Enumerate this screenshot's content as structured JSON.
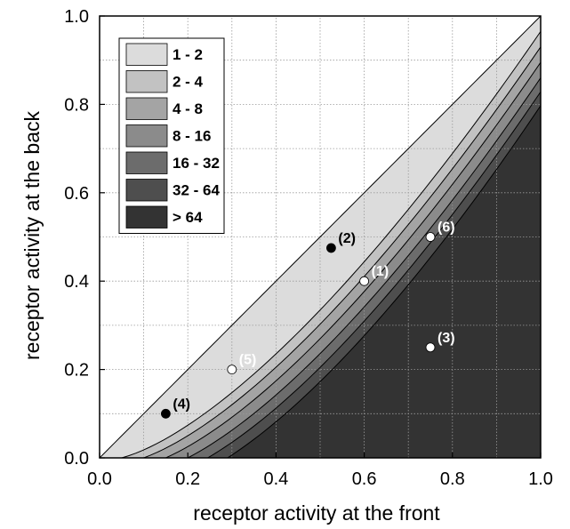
{
  "chart_data": {
    "type": "contour",
    "xlabel": "receptor activity at the front",
    "ylabel": "receptor activity at the back",
    "xlim": [
      0,
      1
    ],
    "ylim": [
      0,
      1
    ],
    "xticks": [
      "0.0",
      "0.2",
      "0.4",
      "0.6",
      "0.8",
      "1.0"
    ],
    "yticks": [
      "0.0",
      "0.2",
      "0.4",
      "0.6",
      "0.8",
      "1.0"
    ],
    "grid": true,
    "legend_position": "top-left",
    "bands": [
      {
        "label": "1 - 2",
        "color": "#dcdcdc",
        "xo": 0.0
      },
      {
        "label": "2 - 4",
        "color": "#c2c2c2",
        "xo": 0.05
      },
      {
        "label": "4 - 8",
        "color": "#a4a4a4",
        "xo": 0.1
      },
      {
        "label": "8 - 16",
        "color": "#8b8b8b",
        "xo": 0.15
      },
      {
        "label": "16 - 32",
        "color": "#6c6c6c",
        "xo": 0.2
      },
      {
        "label": "32 - 64",
        "color": "#4e4e4e",
        "xo": 0.245
      },
      {
        "label": "> 64",
        "color": "#333333",
        "xo": 0.29
      }
    ],
    "points": [
      {
        "label": "(1)",
        "x": 0.6,
        "y": 0.4,
        "fill": "white",
        "text_color": "white"
      },
      {
        "label": "(2)",
        "x": 0.525,
        "y": 0.475,
        "fill": "black",
        "text_color": "black"
      },
      {
        "label": "(3)",
        "x": 0.75,
        "y": 0.25,
        "fill": "white",
        "text_color": "white"
      },
      {
        "label": "(4)",
        "x": 0.15,
        "y": 0.1,
        "fill": "black",
        "text_color": "black"
      },
      {
        "label": "(5)",
        "x": 0.3,
        "y": 0.2,
        "fill": "white",
        "text_color": "white"
      },
      {
        "label": "(6)",
        "x": 0.75,
        "y": 0.5,
        "fill": "white",
        "text_color": "white"
      }
    ]
  }
}
